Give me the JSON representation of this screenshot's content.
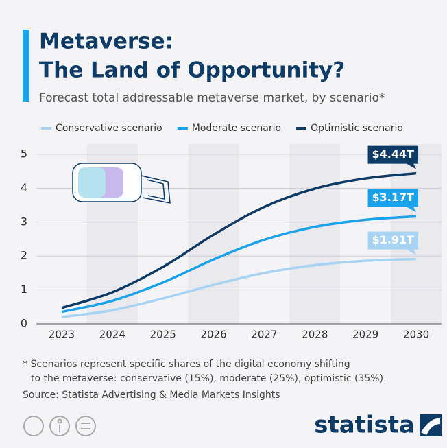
{
  "chart_data": {
    "type": "line",
    "title": [
      "Metaverse:",
      "The Land of Opportunity?"
    ],
    "subtitle": "Forecast total addressable metaverse market, by scenario*",
    "categories": [
      "2023",
      "2024",
      "2025",
      "2026",
      "2027",
      "2028",
      "2029",
      "2030"
    ],
    "series": [
      {
        "name": "Conservative scenario",
        "color": "#a9d3f3",
        "values": [
          0.2,
          0.4,
          0.75,
          1.15,
          1.5,
          1.73,
          1.86,
          1.91
        ],
        "value_labels": [
          null,
          null,
          null,
          null,
          null,
          null,
          null,
          "$1.91T"
        ]
      },
      {
        "name": "Moderate scenario",
        "color": "#1aa2ea",
        "values": [
          0.35,
          0.68,
          1.22,
          1.9,
          2.48,
          2.86,
          3.07,
          3.17
        ],
        "value_labels": [
          null,
          null,
          null,
          null,
          null,
          null,
          null,
          "$3.17T"
        ]
      },
      {
        "name": "Optimistic scenario",
        "color": "#0e3a66",
        "values": [
          0.47,
          0.93,
          1.68,
          2.63,
          3.45,
          3.99,
          4.29,
          4.44
        ],
        "value_labels": [
          null,
          null,
          null,
          null,
          null,
          null,
          null,
          "$4.44T"
        ]
      }
    ],
    "ylim": [
      0,
      5
    ],
    "yticks": [
      0,
      1,
      2,
      3,
      4,
      5
    ],
    "grid": true,
    "notes": [
      "* Scenarios represent specific shares of the digital economy shifting",
      "to the metaverse: conservative (15%), moderate (25%), optimistic (35%)."
    ],
    "source": "Source: Statista Advertising & Media Markets Insights",
    "brand": "statista"
  }
}
